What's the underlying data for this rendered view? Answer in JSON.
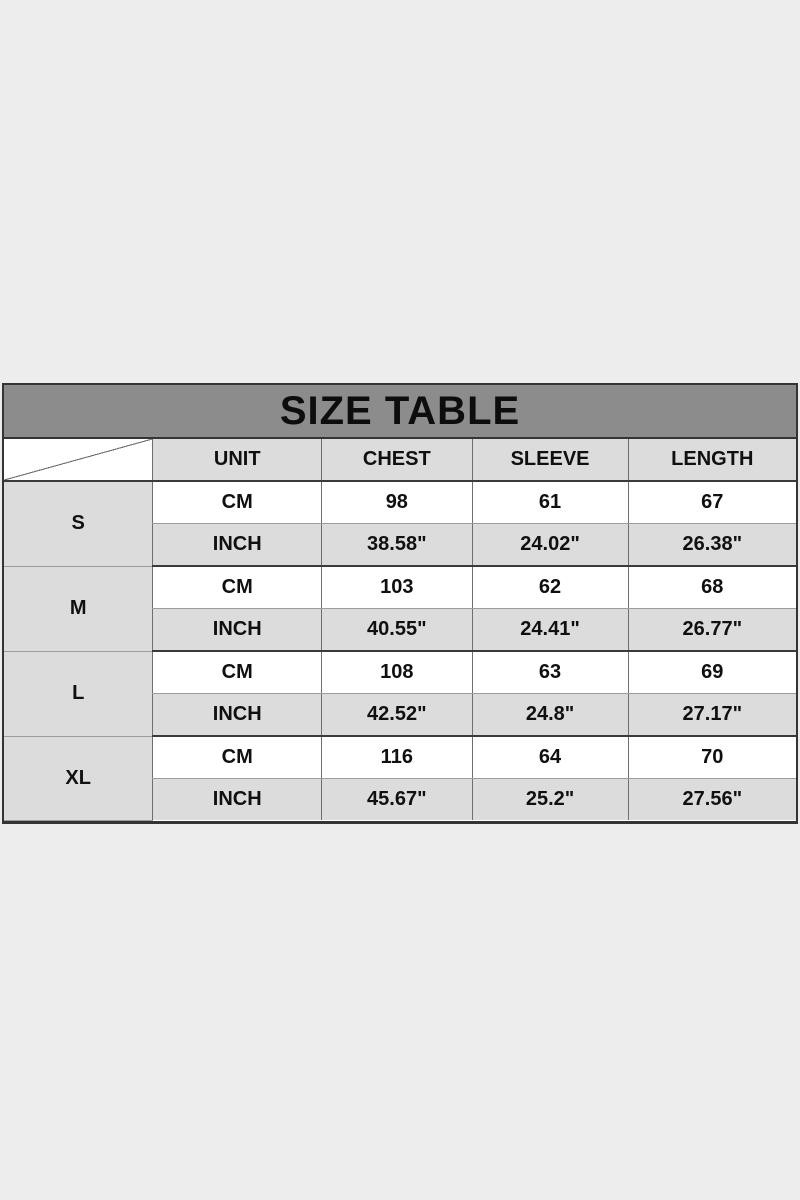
{
  "page": {
    "description": "Apparel product size chart graphic on a plain light background",
    "background_color": "#EDEDED"
  },
  "colors": {
    "banner_background": "#8C8C8C",
    "shaded_cell_background": "#DCDCDC",
    "white_cell_background": "#FFFFFF",
    "border_dark": "#343434",
    "border_light": "#6E6E6E",
    "text": "#101010"
  },
  "chart_data": {
    "type": "table",
    "title": "SIZE TABLE",
    "corner_label": "",
    "columns": [
      "UNIT",
      "CHEST",
      "SLEEVE",
      "LENGTH"
    ],
    "size_groups": [
      {
        "size": "S",
        "rows": [
          [
            "CM",
            "98",
            "61",
            "67"
          ],
          [
            "INCH",
            "38.58\"",
            "24.02\"",
            "26.38\""
          ]
        ]
      },
      {
        "size": "M",
        "rows": [
          [
            "CM",
            "103",
            "62",
            "68"
          ],
          [
            "INCH",
            "40.55\"",
            "24.41\"",
            "26.77\""
          ]
        ]
      },
      {
        "size": "L",
        "rows": [
          [
            "CM",
            "108",
            "63",
            "69"
          ],
          [
            "INCH",
            "42.52\"",
            "24.8\"",
            "27.17\""
          ]
        ]
      },
      {
        "size": "XL",
        "rows": [
          [
            "CM",
            "116",
            "64",
            "70"
          ],
          [
            "INCH",
            "45.67\"",
            "25.2\"",
            "27.56\""
          ]
        ]
      }
    ],
    "layout": {
      "header_shaded": true,
      "cm_rows_white": true,
      "inch_rows_shaded": true,
      "size_column_shaded": true,
      "corner_cell_has_diagonal": true
    }
  }
}
